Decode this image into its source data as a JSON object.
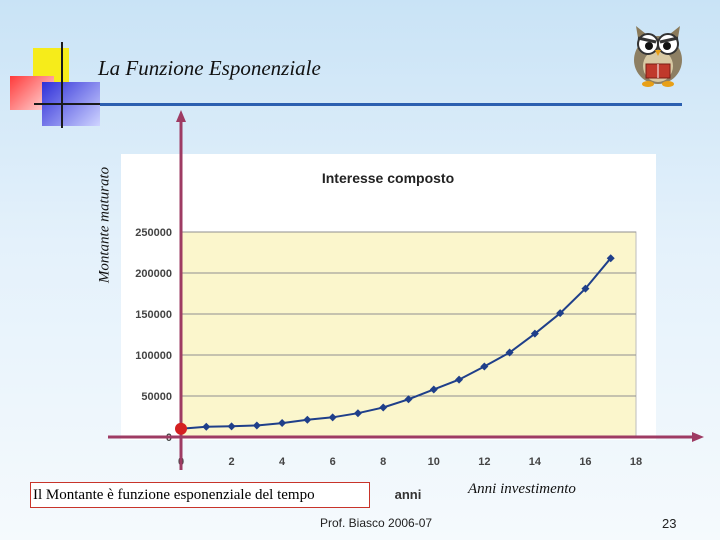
{
  "slide": {
    "title": "La Funzione Esponenziale",
    "y_axis_label": "Montante maturato",
    "caption": "Il Montante è funzione esponenziale del tempo",
    "x_axis_label": "Anni investimento",
    "footer": "Prof. Biasco 2006-07",
    "page_number": "23"
  },
  "chart_data": {
    "type": "line",
    "title": "Interesse composto",
    "xlabel": "anni",
    "ylabel": "",
    "x_ticks": [
      "0",
      "2",
      "4",
      "6",
      "8",
      "10",
      "12",
      "14",
      "16",
      "18"
    ],
    "y_ticks": [
      "0",
      "50000",
      "100000",
      "150000",
      "200000",
      "250000"
    ],
    "xlim": [
      0,
      18
    ],
    "ylim": [
      0,
      250000
    ],
    "grid": true,
    "series": [
      {
        "x": [
          0,
          1,
          2,
          3,
          4,
          5,
          6,
          7,
          8,
          9,
          10,
          11,
          12,
          13,
          14,
          15,
          16,
          17
        ],
        "values": [
          10000,
          12500,
          13000,
          14000,
          17000,
          21000,
          24000,
          29000,
          36000,
          46000,
          58000,
          70000,
          86000,
          103000,
          126000,
          151000,
          181000,
          218000
        ],
        "color": "#1f3f8a"
      }
    ],
    "colors": {
      "plot_bg": "#fbf6cc",
      "line": "#1f3f8a",
      "origin_point": "#d42020",
      "axes": "#9e3b63"
    }
  }
}
